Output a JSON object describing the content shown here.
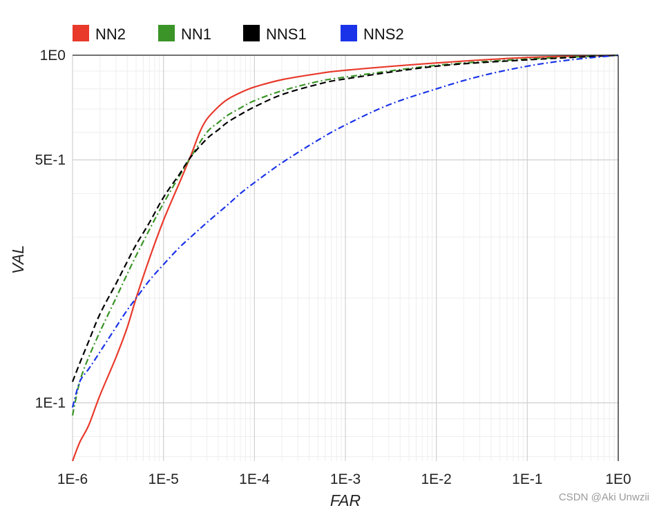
{
  "chart_data": {
    "type": "line",
    "xlabel": "FAR",
    "ylabel": "VAL",
    "x_scale": "log",
    "y_scale": "log",
    "xlim": [
      1e-06,
      1
    ],
    "ylim": [
      0.068,
      1
    ],
    "x_ticks": [
      {
        "value": 1e-06,
        "label": "1E-6"
      },
      {
        "value": 1e-05,
        "label": "1E-5"
      },
      {
        "value": 0.0001,
        "label": "1E-4"
      },
      {
        "value": 0.001,
        "label": "1E-3"
      },
      {
        "value": 0.01,
        "label": "1E-2"
      },
      {
        "value": 0.1,
        "label": "1E-1"
      },
      {
        "value": 1,
        "label": "1E0"
      }
    ],
    "y_ticks": [
      {
        "value": 1,
        "label": "1E0"
      },
      {
        "value": 0.5,
        "label": "5E-1"
      },
      {
        "value": 0.1,
        "label": "1E-1"
      }
    ],
    "grid": true,
    "legend_position": "top-left",
    "series": [
      {
        "name": "NN2",
        "color": "#e8392b",
        "dash": "solid",
        "x": [
          1e-06,
          1.2e-06,
          1.5e-06,
          2e-06,
          3e-06,
          4e-06,
          5e-06,
          7e-06,
          1e-05,
          1.5e-05,
          2e-05,
          2.5e-05,
          3e-05,
          4e-05,
          5e-05,
          7e-05,
          0.0001,
          0.0002,
          0.0005,
          0.001,
          0.01,
          0.1,
          1
        ],
        "y": [
          0.068,
          0.077,
          0.086,
          0.105,
          0.135,
          0.165,
          0.2,
          0.26,
          0.335,
          0.43,
          0.515,
          0.6,
          0.655,
          0.71,
          0.745,
          0.78,
          0.81,
          0.85,
          0.885,
          0.905,
          0.95,
          0.985,
          1.0
        ]
      },
      {
        "name": "NN1",
        "color": "#3a9427",
        "dash": "dashdot",
        "x": [
          1e-06,
          1.2e-06,
          1.5e-06,
          2e-06,
          3e-06,
          4e-06,
          5e-06,
          7e-06,
          1e-05,
          1.5e-05,
          2e-05,
          3e-05,
          4e-05,
          5e-05,
          7e-05,
          0.0001,
          0.0002,
          0.0005,
          0.001,
          0.01,
          0.1,
          1
        ],
        "y": [
          0.092,
          0.115,
          0.135,
          0.16,
          0.2,
          0.235,
          0.265,
          0.315,
          0.375,
          0.45,
          0.51,
          0.6,
          0.64,
          0.67,
          0.705,
          0.74,
          0.79,
          0.84,
          0.865,
          0.935,
          0.975,
          1.0
        ]
      },
      {
        "name": "NNS1",
        "color": "#000000",
        "dash": "dashed",
        "x": [
          1e-06,
          1.2e-06,
          1.5e-06,
          2e-06,
          3e-06,
          4e-06,
          5e-06,
          7e-06,
          1e-05,
          1.5e-05,
          2e-05,
          3e-05,
          4e-05,
          5e-05,
          7e-05,
          0.0001,
          0.0002,
          0.0005,
          0.001,
          0.01,
          0.1,
          1
        ],
        "y": [
          0.115,
          0.13,
          0.15,
          0.18,
          0.22,
          0.255,
          0.285,
          0.33,
          0.39,
          0.455,
          0.51,
          0.575,
          0.61,
          0.64,
          0.675,
          0.71,
          0.77,
          0.825,
          0.855,
          0.93,
          0.97,
          1.0
        ]
      },
      {
        "name": "NNS2",
        "color": "#1a33e8",
        "dash": "dashdot",
        "x": [
          1e-06,
          1.2e-06,
          1.5e-06,
          2e-06,
          3e-06,
          4e-06,
          5e-06,
          7e-06,
          1e-05,
          1.5e-05,
          2e-05,
          3e-05,
          5e-05,
          7e-05,
          0.0001,
          0.0002,
          0.0005,
          0.001,
          0.003,
          0.01,
          0.03,
          0.1,
          0.3,
          1
        ],
        "y": [
          0.097,
          0.115,
          0.125,
          0.14,
          0.165,
          0.185,
          0.2,
          0.225,
          0.25,
          0.28,
          0.3,
          0.33,
          0.37,
          0.4,
          0.43,
          0.49,
          0.57,
          0.63,
          0.72,
          0.8,
          0.87,
          0.93,
          0.97,
          1.0
        ]
      }
    ]
  },
  "watermark": "CSDN @Aki Unwzii"
}
